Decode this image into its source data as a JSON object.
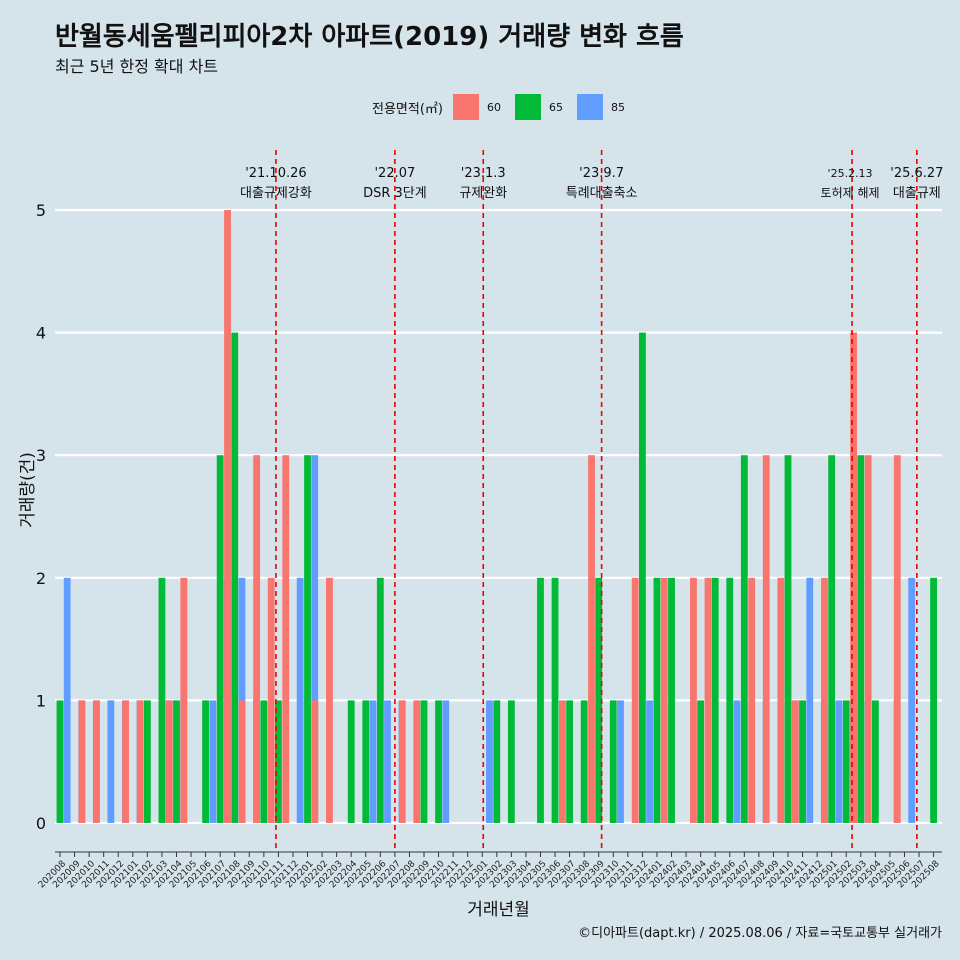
{
  "title": "반월동세움펠리피아2차 아파트(2019) 거래량 변화 흐름",
  "subtitle": "최근 5년 한정 확대 차트",
  "caption": "©디아파트(dapt.kr) / 2025.08.06 / 자료=국토교통부 실거래가",
  "legend": {
    "title": "전용면적(㎡)",
    "items": [
      {
        "label": "60",
        "color": "#F8766D"
      },
      {
        "label": "65",
        "color": "#00BA38"
      },
      {
        "label": "85",
        "color": "#619CFF"
      }
    ]
  },
  "chart_data": {
    "type": "bar",
    "xlabel": "거래년월",
    "ylabel": "거래량(건)",
    "ylim": [
      0,
      5
    ],
    "y_ticks": [
      0,
      1,
      2,
      3,
      4,
      5
    ],
    "grid": true,
    "legend_position": "top",
    "categories": [
      "202008",
      "202009",
      "202010",
      "202011",
      "202012",
      "202101",
      "202102",
      "202103",
      "202104",
      "202105",
      "202106",
      "202107",
      "202108",
      "202109",
      "202110",
      "202111",
      "202112",
      "202201",
      "202202",
      "202203",
      "202204",
      "202205",
      "202206",
      "202207",
      "202208",
      "202209",
      "202210",
      "202211",
      "202212",
      "202301",
      "202302",
      "202303",
      "202304",
      "202305",
      "202306",
      "202307",
      "202308",
      "202309",
      "202310",
      "202311",
      "202312",
      "202401",
      "202402",
      "202403",
      "202404",
      "202405",
      "202406",
      "202407",
      "202408",
      "202409",
      "202410",
      "202411",
      "202412",
      "202501",
      "202502",
      "202503",
      "202504",
      "202505",
      "202506",
      "202507",
      "202508"
    ],
    "series": [
      {
        "name": "60",
        "color": "#F8766D",
        "values": [
          0,
          0,
          1,
          1,
          0,
          1,
          1,
          0,
          1,
          2,
          0,
          0,
          5,
          1,
          3,
          2,
          3,
          0,
          1,
          2,
          0,
          0,
          0,
          0,
          1,
          1,
          0,
          0,
          0,
          0,
          0,
          0,
          0,
          0,
          0,
          1,
          0,
          3,
          0,
          0,
          2,
          0,
          2,
          0,
          2,
          2,
          0,
          0,
          2,
          3,
          2,
          1,
          0,
          2,
          0,
          4,
          3,
          0,
          3,
          0,
          0
        ]
      },
      {
        "name": "65",
        "color": "#00BA38",
        "values": [
          1,
          0,
          0,
          0,
          0,
          0,
          1,
          2,
          1,
          0,
          1,
          3,
          4,
          0,
          1,
          1,
          0,
          3,
          0,
          0,
          1,
          1,
          2,
          0,
          0,
          1,
          1,
          0,
          0,
          0,
          1,
          1,
          0,
          2,
          2,
          1,
          1,
          2,
          1,
          0,
          4,
          2,
          2,
          0,
          1,
          2,
          2,
          3,
          0,
          0,
          3,
          1,
          0,
          3,
          1,
          3,
          1,
          0,
          0,
          0,
          2
        ]
      },
      {
        "name": "85",
        "color": "#619CFF",
        "values": [
          2,
          1,
          1,
          1,
          1,
          1,
          0,
          1,
          1,
          0,
          1,
          2,
          2,
          1,
          0,
          0,
          2,
          3,
          0,
          0,
          0,
          1,
          1,
          1,
          0,
          0,
          1,
          0,
          0,
          1,
          0,
          0,
          0,
          0,
          0,
          0,
          0,
          0,
          1,
          0,
          1,
          0,
          0,
          0,
          0,
          0,
          1,
          0,
          1,
          0,
          1,
          2,
          1,
          1,
          1,
          1,
          0,
          1,
          2,
          0,
          0
        ]
      }
    ],
    "annotations": [
      {
        "date": "'21.10.26",
        "text": "대출규제강화",
        "month_index": 14.83
      },
      {
        "date": "'22.07",
        "text": "DSR 3단계",
        "month_index": 23
      },
      {
        "date": "'23.1.3",
        "text": "규제완화",
        "month_index": 29.07
      },
      {
        "date": "'23.9.7",
        "text": "특례대출축소",
        "month_index": 37.2
      },
      {
        "date": "'25.2.13",
        "text": "토허제 해제",
        "month_index": 54.4
      },
      {
        "date": "'25.6.27",
        "text": "대출규제",
        "month_index": 58.85
      }
    ]
  }
}
